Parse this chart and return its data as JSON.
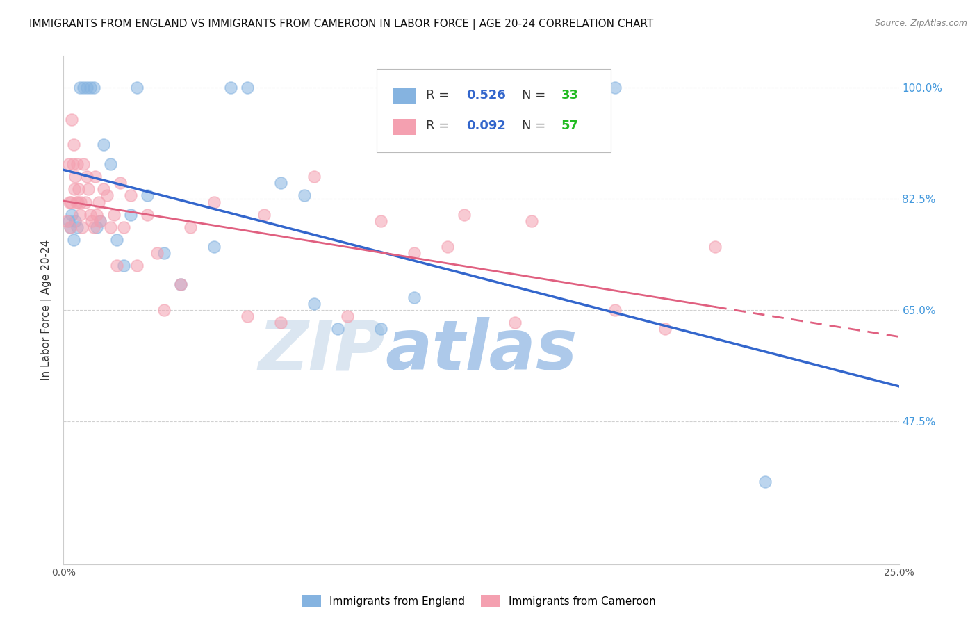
{
  "title": "IMMIGRANTS FROM ENGLAND VS IMMIGRANTS FROM CAMEROON IN LABOR FORCE | AGE 20-24 CORRELATION CHART",
  "source": "Source: ZipAtlas.com",
  "ylabel": "In Labor Force | Age 20-24",
  "xlim": [
    0.0,
    25.0
  ],
  "ylim": [
    25.0,
    105.0
  ],
  "ytick_values": [
    100.0,
    82.5,
    65.0,
    47.5
  ],
  "legend_R_england": "0.526",
  "legend_N_england": "33",
  "legend_R_cameroon": "0.092",
  "legend_N_cameroon": "57",
  "england_color": "#85B3E0",
  "cameroon_color": "#F4A0B0",
  "england_line_color": "#3366CC",
  "cameroon_line_color": "#E06080",
  "watermark_ZIP": "ZIP",
  "watermark_atlas": "atlas",
  "watermark_color_ZIP": "#D0D8E8",
  "watermark_color_atlas": "#A8C8F0",
  "grid_color": "#CCCCCC",
  "background_color": "#FFFFFF",
  "title_fontsize": 11,
  "axis_label_fontsize": 11,
  "tick_fontsize": 10,
  "legend_fontsize": 13,
  "england_x": [
    0.15,
    0.2,
    0.25,
    0.3,
    0.35,
    0.4,
    0.5,
    0.6,
    0.7,
    0.8,
    0.9,
    1.0,
    1.1,
    1.2,
    1.4,
    1.6,
    1.8,
    2.0,
    2.2,
    2.5,
    3.0,
    3.5,
    4.5,
    5.0,
    5.5,
    6.5,
    7.2,
    7.5,
    8.2,
    9.5,
    10.5,
    16.5,
    21.0
  ],
  "england_y": [
    79,
    78,
    80,
    76,
    79,
    78,
    100,
    100,
    100,
    100,
    100,
    78,
    79,
    91,
    88,
    76,
    72,
    80,
    100,
    83,
    74,
    69,
    75,
    100,
    100,
    85,
    83,
    66,
    62,
    62,
    67,
    100,
    38
  ],
  "cameroon_x": [
    0.1,
    0.15,
    0.18,
    0.2,
    0.22,
    0.25,
    0.28,
    0.3,
    0.32,
    0.35,
    0.38,
    0.4,
    0.42,
    0.45,
    0.5,
    0.52,
    0.55,
    0.6,
    0.65,
    0.7,
    0.75,
    0.8,
    0.85,
    0.9,
    0.95,
    1.0,
    1.05,
    1.1,
    1.2,
    1.3,
    1.4,
    1.5,
    1.6,
    1.7,
    1.8,
    2.0,
    2.2,
    2.5,
    2.8,
    3.0,
    3.5,
    3.8,
    4.5,
    5.5,
    6.0,
    6.5,
    7.5,
    8.5,
    9.5,
    10.5,
    11.5,
    12.0,
    13.5,
    14.0,
    16.5,
    18.0,
    19.5
  ],
  "cameroon_y": [
    79,
    88,
    82,
    78,
    82,
    95,
    88,
    91,
    84,
    86,
    82,
    88,
    82,
    84,
    80,
    82,
    78,
    88,
    82,
    86,
    84,
    80,
    79,
    78,
    86,
    80,
    82,
    79,
    84,
    83,
    78,
    80,
    72,
    85,
    78,
    83,
    72,
    80,
    74,
    65,
    69,
    78,
    82,
    64,
    80,
    63,
    86,
    64,
    79,
    74,
    75,
    80,
    63,
    79,
    65,
    62,
    75
  ]
}
